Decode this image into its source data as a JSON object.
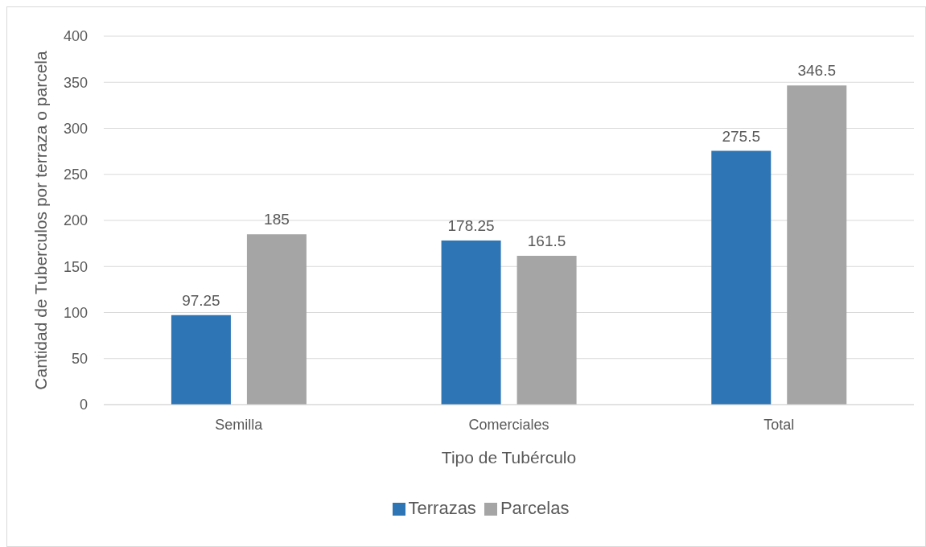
{
  "chart_data": {
    "type": "bar",
    "xlabel": "Tipo de Tubérculo",
    "ylabel": "Cantidad de Tuberculos por terraza o parcela",
    "categories": [
      "Semilla",
      "Comerciales",
      "Total"
    ],
    "series": [
      {
        "name": "Terrazas",
        "color": "#2e75b6",
        "values": [
          97.25,
          178.25,
          275.5
        ]
      },
      {
        "name": "Parcelas",
        "color": "#a5a5a5",
        "values": [
          185,
          161.5,
          346.5
        ]
      }
    ],
    "ylim": [
      0,
      400
    ],
    "yticks": [
      0,
      50,
      100,
      150,
      200,
      250,
      300,
      350,
      400
    ],
    "grid": "y",
    "legend": "bottom",
    "data_labels": true
  }
}
